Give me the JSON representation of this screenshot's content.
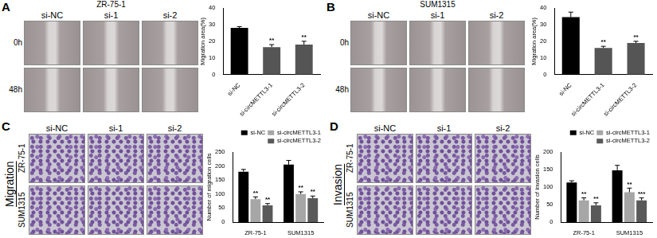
{
  "panels": [
    {
      "letter": "A",
      "title": "ZR-75-1",
      "image_columns": [
        "si-NC",
        "si-1",
        "si-2"
      ],
      "image_rows": [
        "0h",
        "48h"
      ]
    },
    {
      "letter": "B",
      "title": "SUM1315",
      "image_columns": [
        "si-NC",
        "si-1",
        "si-2"
      ],
      "image_rows": [
        "0h",
        "48h"
      ]
    },
    {
      "letter": "C",
      "side_title": "Migration",
      "image_columns": [
        "si-NC",
        "si-1",
        "si-2"
      ],
      "image_rows": [
        "ZR-75-1",
        "SUM1315"
      ]
    },
    {
      "letter": "D",
      "side_title": "Invasion",
      "image_columns": [
        "si-NC",
        "si-1",
        "si-2"
      ],
      "image_rows": [
        "ZR-75-1",
        "SUM1315"
      ]
    }
  ],
  "chart_data": [
    {
      "type": "bar",
      "ylabel": "Migration area(%)",
      "categories": [
        "si-NC",
        "si-circMETTL3-1",
        "si-circMETTL3-2"
      ],
      "values": [
        28,
        16.5,
        18
      ],
      "errors": [
        0.8,
        1.5,
        2
      ],
      "significance": [
        null,
        "**",
        "**"
      ],
      "colors": [
        "#000000",
        "#555555",
        "#555555"
      ],
      "ylim": [
        0,
        40
      ],
      "yticks": [
        0,
        10,
        20,
        30,
        40
      ],
      "grid": false
    },
    {
      "type": "bar",
      "ylabel": "Migration area(%)",
      "categories": [
        "si-NC",
        "si-circMETTL3-1",
        "si-circMETTL3-2"
      ],
      "values": [
        34.5,
        16,
        19
      ],
      "errors": [
        3,
        1,
        1
      ],
      "significance": [
        null,
        "**",
        "**"
      ],
      "colors": [
        "#000000",
        "#555555",
        "#555555"
      ],
      "ylim": [
        0,
        40
      ],
      "yticks": [
        0,
        10,
        20,
        30,
        40
      ],
      "grid": false
    },
    {
      "type": "bar",
      "ylabel": "Number of migration cells",
      "categories": [
        "ZR-75-1",
        "SUM1315"
      ],
      "series": [
        {
          "name": "si-NC",
          "color": "#000000",
          "values": [
            180,
            205
          ],
          "errors": [
            8,
            15
          ],
          "significance": [
            null,
            null
          ]
        },
        {
          "name": "si-circMETTL3-1",
          "color": "#a6a6a6",
          "values": [
            82,
            100
          ],
          "errors": [
            8,
            8
          ],
          "significance": [
            "**",
            "**"
          ]
        },
        {
          "name": "si-circMETTL3-2",
          "color": "#595959",
          "values": [
            60,
            85
          ],
          "errors": [
            6,
            8
          ],
          "significance": [
            "**",
            "**"
          ]
        }
      ],
      "ylim": [
        0,
        250
      ],
      "yticks": [
        0,
        50,
        100,
        150,
        200,
        250
      ],
      "grid": false,
      "legend": "top"
    },
    {
      "type": "bar",
      "ylabel": "Number of invasion cells",
      "categories": [
        "ZR-75-1",
        "SUM1315"
      ],
      "series": [
        {
          "name": "si-NC",
          "color": "#000000",
          "values": [
            113,
            148
          ],
          "errors": [
            5,
            14
          ],
          "significance": [
            null,
            null
          ]
        },
        {
          "name": "si-circMETTL3-1",
          "color": "#a6a6a6",
          "values": [
            62,
            85
          ],
          "errors": [
            7,
            12
          ],
          "significance": [
            "**",
            "**"
          ]
        },
        {
          "name": "si-circMETTL3-2",
          "color": "#595959",
          "values": [
            48,
            62
          ],
          "errors": [
            7,
            7
          ],
          "significance": [
            "**",
            "***"
          ]
        }
      ],
      "ylim": [
        0,
        200
      ],
      "yticks": [
        0,
        50,
        100,
        150,
        200
      ],
      "grid": false,
      "legend": "top"
    }
  ]
}
